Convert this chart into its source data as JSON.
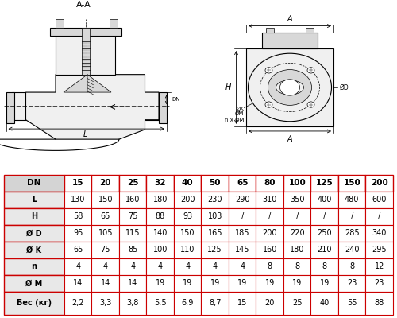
{
  "title_aa": "A-A",
  "table_headers": [
    "DN",
    "15",
    "20",
    "25",
    "32",
    "40",
    "50",
    "65",
    "80",
    "100",
    "125",
    "150",
    "200"
  ],
  "rows": [
    {
      "label": "L",
      "values": [
        "130",
        "150",
        "160",
        "180",
        "200",
        "230",
        "290",
        "310",
        "350",
        "400",
        "480",
        "600"
      ]
    },
    {
      "label": "H",
      "values": [
        "58",
        "65",
        "75",
        "88",
        "93",
        "103",
        "/",
        "/",
        "/",
        "/",
        "/",
        "/"
      ]
    },
    {
      "label": "Ø D",
      "values": [
        "95",
        "105",
        "115",
        "140",
        "150",
        "165",
        "185",
        "200",
        "220",
        "250",
        "285",
        "340"
      ]
    },
    {
      "label": "Ø K",
      "values": [
        "65",
        "75",
        "85",
        "100",
        "110",
        "125",
        "145",
        "160",
        "180",
        "210",
        "240",
        "295"
      ]
    },
    {
      "label": "n",
      "values": [
        "4",
        "4",
        "4",
        "4",
        "4",
        "4",
        "4",
        "8",
        "8",
        "8",
        "8",
        "12"
      ]
    },
    {
      "label": "Ø M",
      "values": [
        "14",
        "14",
        "14",
        "19",
        "19",
        "19",
        "19",
        "19",
        "19",
        "19",
        "23",
        "23"
      ]
    },
    {
      "label": "Бес (кг)",
      "values": [
        "2,2",
        "3,3",
        "3,8",
        "5,5",
        "6,9",
        "8,7",
        "15",
        "20",
        "25",
        "40",
        "55",
        "88"
      ]
    }
  ],
  "border_color": "#cc0000",
  "header_bg": "#d4d4d4",
  "label_bg": "#e8e8e8",
  "white": "#ffffff",
  "black": "#000000",
  "gray_light": "#f0f0f0",
  "gray_mid": "#d8d8d8",
  "gray_dark": "#b0b0b0"
}
